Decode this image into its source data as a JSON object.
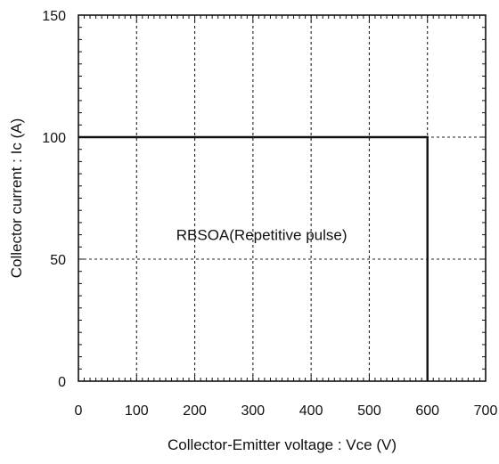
{
  "chart_data": {
    "type": "line",
    "xlabel": "Collector-Emitter voltage : Vce (V)",
    "ylabel": "Collector current : Ic (A)",
    "xlim": [
      0,
      700
    ],
    "ylim": [
      0,
      150
    ],
    "x_ticks": [
      0,
      100,
      200,
      300,
      400,
      500,
      600,
      700
    ],
    "y_ticks": [
      0,
      50,
      100,
      150
    ],
    "x_tick_labels": [
      "0",
      "100",
      "200",
      "300",
      "400",
      "500",
      "600",
      "700"
    ],
    "y_tick_labels": [
      "0",
      "50",
      "100",
      "150"
    ],
    "grid": true,
    "series": [
      {
        "x": [
          0,
          600,
          600
        ],
        "y": [
          100,
          100,
          0
        ],
        "color": "#111111"
      }
    ],
    "annotations": [
      {
        "text": "RBSOA(Repetitive pulse)",
        "x": 315,
        "y": 60
      }
    ]
  }
}
